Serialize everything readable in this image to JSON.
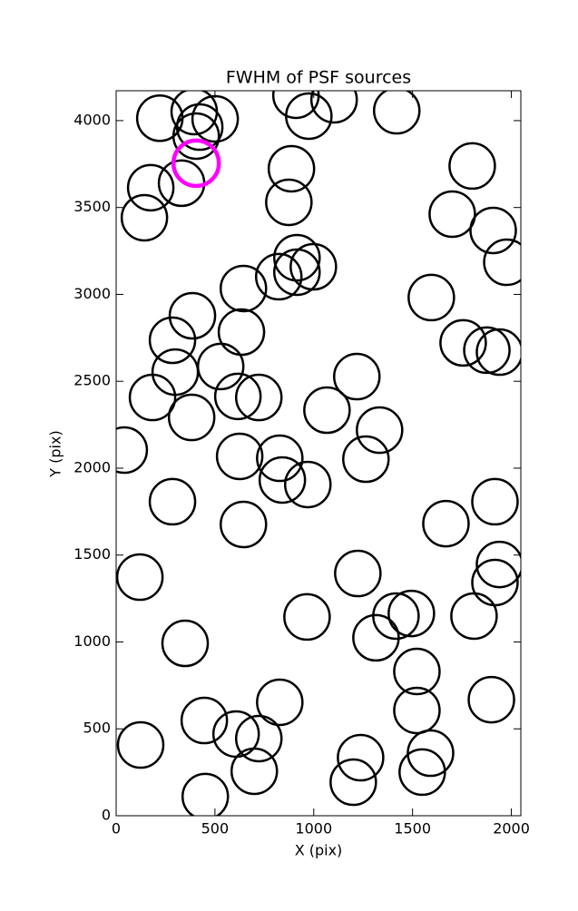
{
  "chart_data": {
    "type": "scatter",
    "title": "FWHM of PSF sources",
    "x_label": "X (pix)",
    "y_label": "Y (pix)",
    "xlim": [
      0,
      2048
    ],
    "ylim": [
      0,
      4172
    ],
    "xticks": [
      0,
      500,
      1000,
      1500,
      2000
    ],
    "yticks": [
      0,
      500,
      1000,
      1500,
      2000,
      2500,
      3000,
      3500,
      4000
    ],
    "series": [
      {
        "color": "#000000",
        "x": [
          221,
          395,
          423,
          501,
          405,
          910,
          1103,
          975,
          1420,
          175,
          331,
          143,
          887,
          874,
          1802,
          1701,
          1908,
          1977,
          915,
          998,
          823,
          915,
          644,
          386,
          634,
          1595,
          1756,
          1876,
          1940,
          285,
          299,
          529,
          1218,
          184,
          616,
          722,
          382,
          1067,
          1333,
          41,
          625,
          828,
          1264,
          841,
          970,
          285,
          644,
          1669,
          1917,
          120,
          1223,
          1940,
          1917,
          966,
          1416,
          1494,
          1315,
          1811,
          349,
          1522,
          1522,
          828,
          1899,
          446,
          607,
          722,
          124,
          1591,
          1237,
          699,
          1549,
          1200,
          451
        ],
        "y": [
          4014,
          4052,
          3963,
          4010,
          3911,
          4146,
          4120,
          4026,
          4057,
          3614,
          3640,
          3441,
          3723,
          3530,
          3739,
          3462,
          3368,
          3185,
          3211,
          3159,
          3102,
          3128,
          3034,
          2877,
          2783,
          2982,
          2721,
          2679,
          2668,
          2736,
          2553,
          2585,
          2527,
          2407,
          2413,
          2407,
          2292,
          2334,
          2219,
          2104,
          2068,
          2057,
          2052,
          1932,
          1906,
          1807,
          1676,
          1681,
          1807,
          1373,
          1394,
          1446,
          1342,
          1144,
          1149,
          1164,
          1024,
          1149,
          992,
          830,
          606,
          653,
          668,
          548,
          470,
          444,
          407,
          360,
          334,
          256,
          251,
          193,
          110
        ]
      },
      {
        "color": "#ff00ff",
        "x": [
          405
        ],
        "y": [
          3755
        ]
      }
    ]
  }
}
